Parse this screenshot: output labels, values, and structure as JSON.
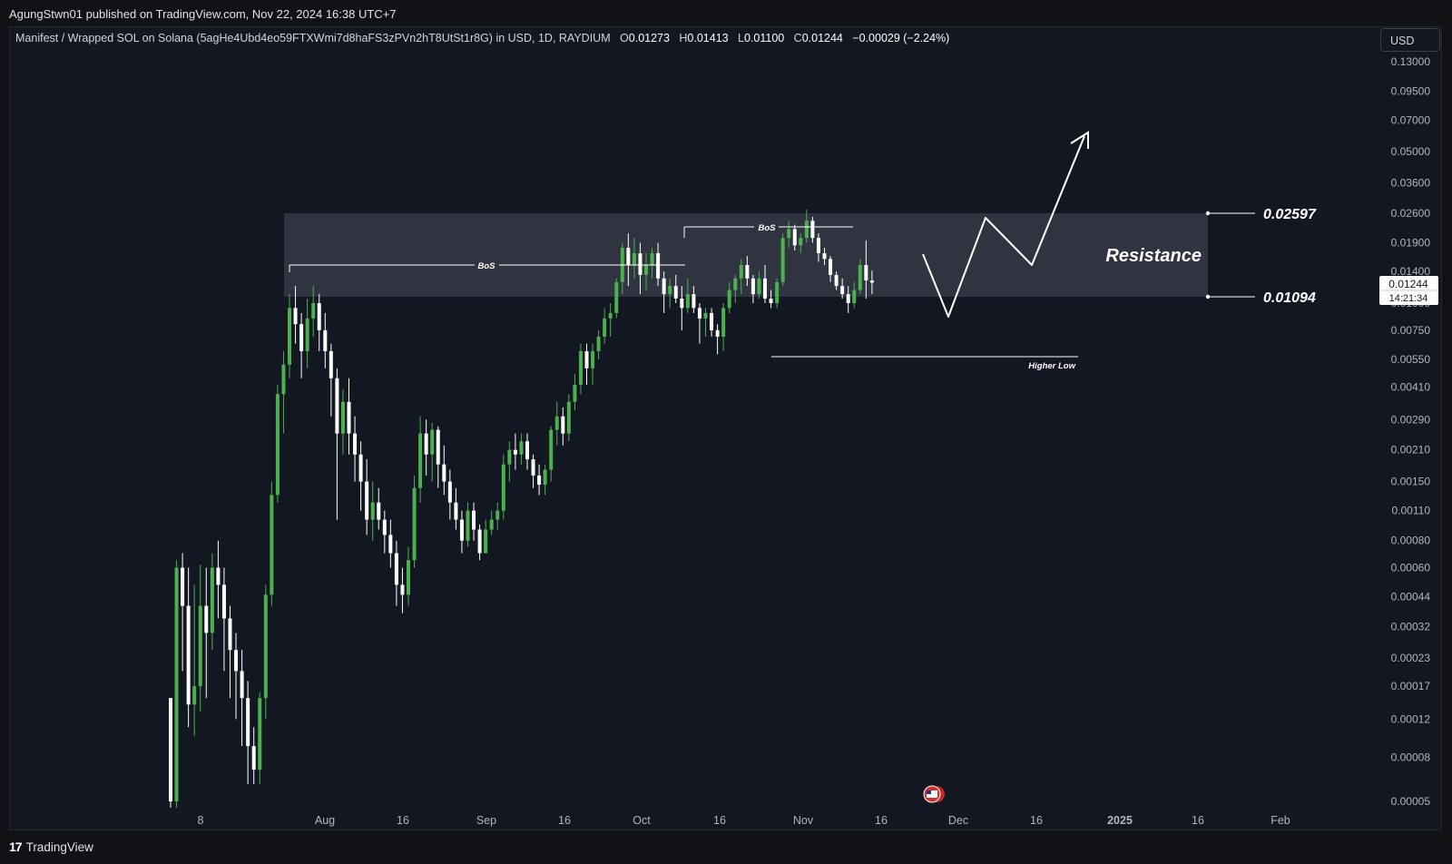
{
  "header": {
    "published_text": "AgungStwn01 published on TradingView.com, Nov 22, 2024 16:38 UTC+7"
  },
  "legend": {
    "symbol": "Manifest / Wrapped SOL on Solana (5agHe4Ubd4eo59FTXWmi7d8haFS3zPVn2hT8UtSt1r8G) in USD, 1D, RAYDIUM",
    "open_label": "O",
    "open": "0.01273",
    "high_label": "H",
    "high": "0.01413",
    "low_label": "L",
    "low": "0.01100",
    "close_label": "C",
    "close": "0.01244",
    "change": "−0.00029 (−2.24%)"
  },
  "toolbar": {
    "currency": "USD"
  },
  "footer": {
    "brand": "TradingView"
  },
  "colors": {
    "up": "#4caf50",
    "down": "#ffffff",
    "background": "#131722",
    "zone": "#363a45"
  },
  "chart_data": {
    "type": "candlestick",
    "interval": "1D",
    "scale": "log",
    "y_ticks": [
      "0.13000",
      "0.09500",
      "0.07000",
      "0.05000",
      "0.03600",
      "0.02600",
      "0.01900",
      "0.01400",
      "0.01000",
      "0.00750",
      "0.00550",
      "0.00410",
      "0.00290",
      "0.00210",
      "0.00150",
      "0.00110",
      "0.00080",
      "0.00060",
      "0.00044",
      "0.00032",
      "0.00023",
      "0.00017",
      "0.00012",
      "0.00008",
      "0.00005"
    ],
    "x_ticks": [
      "8",
      "Aug",
      "16",
      "Sep",
      "16",
      "Oct",
      "16",
      "Nov",
      "16",
      "Dec",
      "16",
      "2025",
      "16",
      "Feb"
    ],
    "last_price": {
      "value": "0.01244",
      "countdown": "14:21:34"
    },
    "annotations": {
      "resistance_label": "Resistance",
      "resistance_top": "0.02597",
      "resistance_bottom": "0.01094",
      "bos_label": "BoS",
      "higher_low_label": "Higher Low"
    },
    "candles": [
      [
        1,
        0.00015,
        0.00015,
        4e-05,
        5e-05
      ],
      [
        2,
        5e-05,
        0.00065,
        4e-05,
        0.0006
      ],
      [
        3,
        0.0006,
        0.0007,
        0.0002,
        0.0004
      ],
      [
        4,
        0.0004,
        0.0006,
        0.00011,
        0.00014
      ],
      [
        5,
        0.00014,
        0.0005,
        0.0001,
        0.00017
      ],
      [
        6,
        0.00017,
        0.00062,
        0.00013,
        0.0004
      ],
      [
        7,
        0.0004,
        0.0006,
        0.00015,
        0.0003
      ],
      [
        8,
        0.0003,
        0.0007,
        0.00025,
        0.0006
      ],
      [
        9,
        0.0006,
        0.0008,
        0.00035,
        0.0005
      ],
      [
        10,
        0.0005,
        0.0006,
        0.0002,
        0.00035
      ],
      [
        11,
        0.00035,
        0.0004,
        0.00015,
        0.00025
      ],
      [
        12,
        0.00025,
        0.0003,
        0.00012,
        0.0002
      ],
      [
        13,
        0.0002,
        0.00025,
        9e-05,
        0.00015
      ],
      [
        14,
        0.00015,
        0.00018,
        6e-05,
        9e-05
      ],
      [
        15,
        9e-05,
        0.00011,
        6e-05,
        7e-05
      ],
      [
        16,
        7e-05,
        0.00016,
        6e-05,
        0.00015
      ],
      [
        17,
        0.00015,
        0.0005,
        0.00012,
        0.00045
      ],
      [
        18,
        0.00045,
        0.0015,
        0.0004,
        0.0013
      ],
      [
        19,
        0.0013,
        0.0042,
        0.0012,
        0.0038
      ],
      [
        20,
        0.0038,
        0.006,
        0.0025,
        0.0052
      ],
      [
        21,
        0.0052,
        0.011,
        0.0045,
        0.0095
      ],
      [
        22,
        0.0095,
        0.012,
        0.0065,
        0.008
      ],
      [
        23,
        0.008,
        0.009,
        0.0045,
        0.006
      ],
      [
        24,
        0.006,
        0.0105,
        0.005,
        0.0085
      ],
      [
        25,
        0.0085,
        0.012,
        0.007,
        0.01
      ],
      [
        26,
        0.01,
        0.011,
        0.006,
        0.0075
      ],
      [
        27,
        0.0075,
        0.009,
        0.005,
        0.006
      ],
      [
        28,
        0.006,
        0.0065,
        0.003,
        0.0045
      ],
      [
        29,
        0.0045,
        0.005,
        0.001,
        0.0025
      ],
      [
        30,
        0.0025,
        0.004,
        0.002,
        0.0035
      ],
      [
        31,
        0.0035,
        0.0045,
        0.002,
        0.0025
      ],
      [
        32,
        0.0025,
        0.003,
        0.0015,
        0.002
      ],
      [
        33,
        0.002,
        0.0023,
        0.0011,
        0.0015
      ],
      [
        34,
        0.0015,
        0.0019,
        0.00085,
        0.001
      ],
      [
        35,
        0.001,
        0.0015,
        0.0008,
        0.0012
      ],
      [
        36,
        0.0012,
        0.0014,
        0.0009,
        0.001
      ],
      [
        37,
        0.001,
        0.0011,
        0.0007,
        0.00085
      ],
      [
        38,
        0.00085,
        0.001,
        0.0006,
        0.0007
      ],
      [
        39,
        0.0007,
        0.0008,
        0.0004,
        0.0005
      ],
      [
        40,
        0.0005,
        0.0006,
        0.00037,
        0.00045
      ],
      [
        41,
        0.00045,
        0.00075,
        0.0004,
        0.00065
      ],
      [
        42,
        0.00065,
        0.0016,
        0.0006,
        0.0014
      ],
      [
        43,
        0.0014,
        0.003,
        0.0012,
        0.0025
      ],
      [
        44,
        0.0025,
        0.0029,
        0.0016,
        0.002
      ],
      [
        45,
        0.002,
        0.0028,
        0.0015,
        0.0026
      ],
      [
        46,
        0.0026,
        0.0027,
        0.0014,
        0.0018
      ],
      [
        47,
        0.0018,
        0.0022,
        0.0013,
        0.0015
      ],
      [
        48,
        0.0015,
        0.0017,
        0.001,
        0.0012
      ],
      [
        49,
        0.0012,
        0.0014,
        0.0009,
        0.001
      ],
      [
        50,
        0.001,
        0.0011,
        0.0007,
        0.0008
      ],
      [
        51,
        0.0008,
        0.0012,
        0.00075,
        0.0011
      ],
      [
        52,
        0.0011,
        0.0012,
        0.0008,
        0.0009
      ],
      [
        53,
        0.0009,
        0.00095,
        0.00065,
        0.0007
      ],
      [
        54,
        0.0007,
        0.001,
        0.0007,
        0.0009
      ],
      [
        55,
        0.0009,
        0.0011,
        0.00085,
        0.001
      ],
      [
        56,
        0.001,
        0.0012,
        0.0009,
        0.0011
      ],
      [
        57,
        0.0011,
        0.002,
        0.001,
        0.0018
      ],
      [
        58,
        0.0018,
        0.0023,
        0.0015,
        0.0021
      ],
      [
        59,
        0.0021,
        0.0025,
        0.0017,
        0.002
      ],
      [
        60,
        0.002,
        0.0025,
        0.0018,
        0.0023
      ],
      [
        61,
        0.0023,
        0.0025,
        0.0017,
        0.0019
      ],
      [
        62,
        0.0019,
        0.002,
        0.0014,
        0.0016
      ],
      [
        63,
        0.0016,
        0.0018,
        0.0013,
        0.00145
      ],
      [
        64,
        0.00145,
        0.0018,
        0.0013,
        0.0017
      ],
      [
        65,
        0.0017,
        0.0027,
        0.0015,
        0.0026
      ],
      [
        66,
        0.0026,
        0.0035,
        0.0022,
        0.003
      ],
      [
        67,
        0.003,
        0.0033,
        0.0022,
        0.0025
      ],
      [
        68,
        0.0025,
        0.0038,
        0.0023,
        0.0035
      ],
      [
        69,
        0.0035,
        0.0047,
        0.0032,
        0.0042
      ],
      [
        70,
        0.0042,
        0.0065,
        0.0038,
        0.006
      ],
      [
        71,
        0.006,
        0.0065,
        0.0042,
        0.005
      ],
      [
        72,
        0.005,
        0.0065,
        0.0042,
        0.006
      ],
      [
        73,
        0.006,
        0.0075,
        0.0055,
        0.007
      ],
      [
        74,
        0.007,
        0.0095,
        0.0065,
        0.0085
      ],
      [
        75,
        0.0085,
        0.01,
        0.007,
        0.009
      ],
      [
        76,
        0.009,
        0.013,
        0.0085,
        0.0125
      ],
      [
        77,
        0.0125,
        0.019,
        0.011,
        0.018
      ],
      [
        78,
        0.018,
        0.021,
        0.012,
        0.015
      ],
      [
        79,
        0.015,
        0.02,
        0.013,
        0.017
      ],
      [
        80,
        0.017,
        0.019,
        0.011,
        0.0135
      ],
      [
        81,
        0.0135,
        0.017,
        0.0115,
        0.015
      ],
      [
        82,
        0.015,
        0.018,
        0.013,
        0.017
      ],
      [
        83,
        0.017,
        0.019,
        0.012,
        0.013
      ],
      [
        84,
        0.013,
        0.014,
        0.009,
        0.011
      ],
      [
        85,
        0.011,
        0.013,
        0.0095,
        0.012
      ],
      [
        86,
        0.012,
        0.0135,
        0.01,
        0.0105
      ],
      [
        87,
        0.0105,
        0.012,
        0.0075,
        0.0095
      ],
      [
        88,
        0.0095,
        0.013,
        0.009,
        0.011
      ],
      [
        89,
        0.011,
        0.012,
        0.009,
        0.0095
      ],
      [
        90,
        0.0095,
        0.01,
        0.0065,
        0.0085
      ],
      [
        91,
        0.0085,
        0.0095,
        0.007,
        0.009
      ],
      [
        92,
        0.009,
        0.0095,
        0.007,
        0.0075
      ],
      [
        93,
        0.0075,
        0.008,
        0.0058,
        0.007
      ],
      [
        94,
        0.007,
        0.01,
        0.006,
        0.0095
      ],
      [
        95,
        0.0095,
        0.0125,
        0.009,
        0.0115
      ],
      [
        96,
        0.0115,
        0.0135,
        0.01,
        0.013
      ],
      [
        97,
        0.013,
        0.016,
        0.011,
        0.015
      ],
      [
        98,
        0.015,
        0.0165,
        0.012,
        0.013
      ],
      [
        99,
        0.013,
        0.0135,
        0.01,
        0.011
      ],
      [
        100,
        0.011,
        0.014,
        0.0105,
        0.013
      ],
      [
        101,
        0.013,
        0.015,
        0.01,
        0.0105
      ],
      [
        102,
        0.0105,
        0.0115,
        0.0095,
        0.01
      ],
      [
        103,
        0.01,
        0.013,
        0.0095,
        0.0125
      ],
      [
        104,
        0.0125,
        0.021,
        0.012,
        0.02
      ],
      [
        105,
        0.02,
        0.024,
        0.018,
        0.022
      ],
      [
        106,
        0.022,
        0.023,
        0.0175,
        0.0185
      ],
      [
        107,
        0.0185,
        0.021,
        0.017,
        0.02
      ],
      [
        108,
        0.02,
        0.027,
        0.019,
        0.024
      ],
      [
        109,
        0.024,
        0.025,
        0.019,
        0.02
      ],
      [
        110,
        0.02,
        0.021,
        0.0155,
        0.017
      ],
      [
        111,
        0.017,
        0.018,
        0.015,
        0.016
      ],
      [
        112,
        0.016,
        0.0165,
        0.0125,
        0.0135
      ],
      [
        113,
        0.0135,
        0.014,
        0.0115,
        0.012
      ],
      [
        114,
        0.012,
        0.013,
        0.0105,
        0.011
      ],
      [
        115,
        0.011,
        0.012,
        0.009,
        0.01
      ],
      [
        116,
        0.01,
        0.0125,
        0.0095,
        0.0115
      ],
      [
        117,
        0.0115,
        0.016,
        0.011,
        0.015
      ],
      [
        118,
        0.015,
        0.0195,
        0.0105,
        0.01273
      ],
      [
        119,
        0.01273,
        0.01413,
        0.011,
        0.01244
      ]
    ]
  }
}
